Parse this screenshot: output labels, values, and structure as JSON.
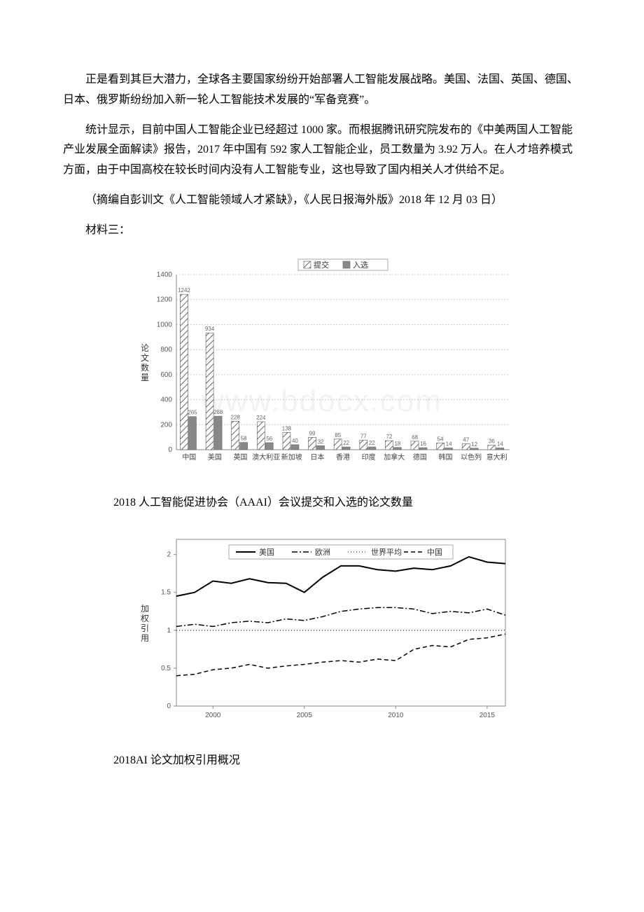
{
  "paragraphs": {
    "p1": "正是看到其巨大潜力，全球各主要国家纷纷开始部署人工智能发展战略。美国、法国、英国、德国、日本、俄罗斯纷纷加入新一轮人工智能技术发展的“军备竞赛”。",
    "p2": "统计显示，目前中国人工智能企业已经超过 1000 家。而根据腾讯研究院发布的《中美两国人工智能产业发展全面解读》报告，2017 年中国有 592 家人工智能企业，员工数量为 3.92 万人。在人才培养模式方面，由于中国高校在较长时间内没有人工智能专业，这也导致了国内相关人才供给不足。",
    "p3": "（摘编自彭训文《人工智能领域人才紧缺》，《人民日报海外版》2018 年 12 月 03 日）",
    "p4": "材料三："
  },
  "chart1": {
    "type": "bar",
    "title": null,
    "ylabel": "论文数量",
    "legend": [
      "提交",
      "入选"
    ],
    "legend_markers": [
      "hatch",
      "solid"
    ],
    "ylim": [
      0,
      1400
    ],
    "yticks": [
      0,
      200,
      400,
      600,
      800,
      1000,
      1200,
      1400
    ],
    "categories": [
      "中国",
      "美国",
      "英国",
      "澳大利亚",
      "新加坡",
      "日本",
      "香港",
      "印度",
      "加拿大",
      "德国",
      "韩国",
      "以色列",
      "意大利"
    ],
    "submitted": [
      1242,
      934,
      228,
      224,
      138,
      99,
      85,
      77,
      72,
      68,
      54,
      47,
      36
    ],
    "accepted": [
      265,
      268,
      58,
      56,
      40,
      32,
      22,
      22,
      18,
      16,
      14,
      12,
      14
    ],
    "hatch_color": "#666666",
    "solid_color": "#888888",
    "grid_color": "#cccccc",
    "axis_color": "#888888",
    "bg": "#ffffff",
    "watermark": "www.bdocx.com"
  },
  "caption1": "2018 人工智能促进协会（AAAI）会议提交和入选的论文数量",
  "chart2": {
    "type": "line",
    "ylabel": "加权引用",
    "legend": [
      "美国",
      "欧洲",
      "世界平均",
      "中国"
    ],
    "styles": [
      "solid",
      "dashdot",
      "dotted",
      "dashed"
    ],
    "ylim": [
      0,
      2.2
    ],
    "yticks": [
      0,
      0.5,
      1,
      1.5,
      2
    ],
    "xticks": [
      2000,
      2005,
      2010,
      2015
    ],
    "line_color": "#000000",
    "axis_color": "#888888",
    "bg": "#ffffff",
    "series": {
      "usa": {
        "x": [
          1998,
          1999,
          2000,
          2001,
          2002,
          2003,
          2004,
          2005,
          2006,
          2007,
          2008,
          2009,
          2010,
          2011,
          2012,
          2013,
          2014,
          2015,
          2016
        ],
        "y": [
          1.45,
          1.5,
          1.65,
          1.62,
          1.68,
          1.63,
          1.62,
          1.5,
          1.7,
          1.85,
          1.85,
          1.8,
          1.78,
          1.82,
          1.8,
          1.85,
          1.97,
          1.9,
          1.88
        ]
      },
      "eu": {
        "x": [
          1998,
          1999,
          2000,
          2001,
          2002,
          2003,
          2004,
          2005,
          2006,
          2007,
          2008,
          2009,
          2010,
          2011,
          2012,
          2013,
          2014,
          2015,
          2016
        ],
        "y": [
          1.05,
          1.08,
          1.05,
          1.1,
          1.12,
          1.1,
          1.15,
          1.13,
          1.18,
          1.25,
          1.28,
          1.3,
          1.3,
          1.28,
          1.22,
          1.25,
          1.23,
          1.28,
          1.2
        ]
      },
      "world": {
        "x": [
          1998,
          1999,
          2000,
          2001,
          2002,
          2003,
          2004,
          2005,
          2006,
          2007,
          2008,
          2009,
          2010,
          2011,
          2012,
          2013,
          2014,
          2015,
          2016
        ],
        "y": [
          1.0,
          1.0,
          1.0,
          1.0,
          1.0,
          1.0,
          1.0,
          1.0,
          1.0,
          1.0,
          1.0,
          1.0,
          1.0,
          1.0,
          1.0,
          1.0,
          1.0,
          1.0,
          1.0
        ]
      },
      "china": {
        "x": [
          1998,
          1999,
          2000,
          2001,
          2002,
          2003,
          2004,
          2005,
          2006,
          2007,
          2008,
          2009,
          2010,
          2011,
          2012,
          2013,
          2014,
          2015,
          2016
        ],
        "y": [
          0.4,
          0.42,
          0.48,
          0.5,
          0.55,
          0.5,
          0.53,
          0.55,
          0.58,
          0.6,
          0.58,
          0.62,
          0.6,
          0.75,
          0.8,
          0.78,
          0.88,
          0.9,
          0.95
        ]
      }
    }
  },
  "caption2": "2018AI 论文加权引用概况"
}
